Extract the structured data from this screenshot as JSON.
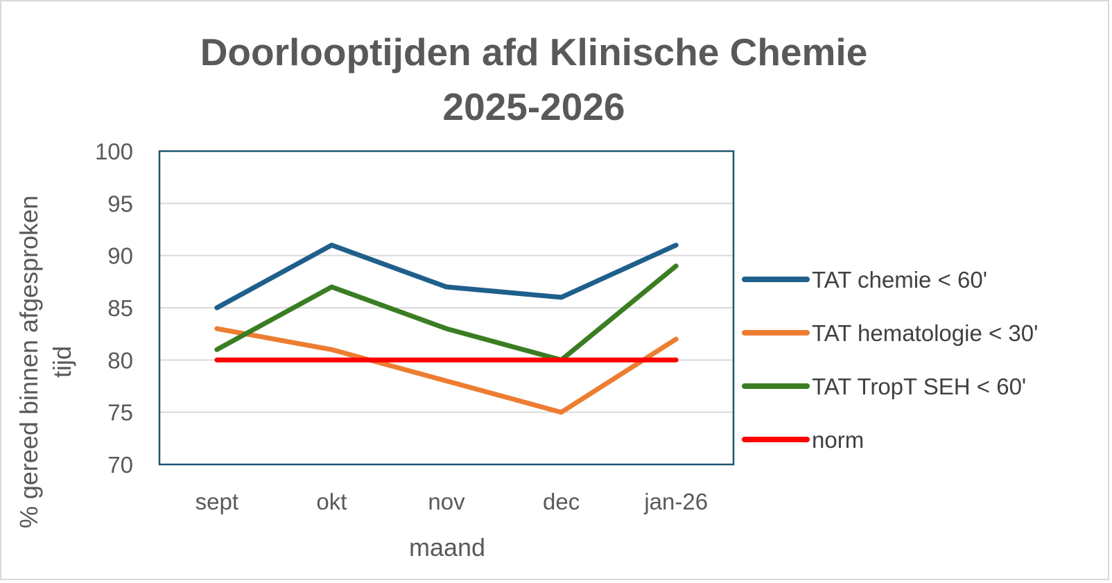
{
  "chart_data": {
    "type": "line",
    "title": "Doorlooptijden afd Klinische Chemie",
    "subtitle": "2025-2026",
    "xlabel": "maand",
    "ylabel_line1": "% gereed binnen afgesproken",
    "ylabel_line2": "tijd",
    "categories": [
      "sept",
      "okt",
      "nov",
      "dec",
      "jan-26"
    ],
    "ylim": [
      70,
      100
    ],
    "yticks": [
      70,
      75,
      80,
      85,
      90,
      95,
      100
    ],
    "grid": true,
    "legend_position": "right",
    "series": [
      {
        "name": "TAT chemie < 60'",
        "color": "#1f5f8b",
        "values": [
          85,
          91,
          87,
          86,
          91
        ]
      },
      {
        "name": "TAT hematologie < 30'",
        "color": "#ed7d31",
        "values": [
          83,
          81,
          78,
          75,
          82
        ]
      },
      {
        "name": "TAT TropT SEH < 60'",
        "color": "#3a7d22",
        "values": [
          81,
          87,
          83,
          80,
          89
        ]
      },
      {
        "name": "norm",
        "color": "#ff0000",
        "values": [
          80,
          80,
          80,
          80,
          80
        ]
      }
    ]
  }
}
